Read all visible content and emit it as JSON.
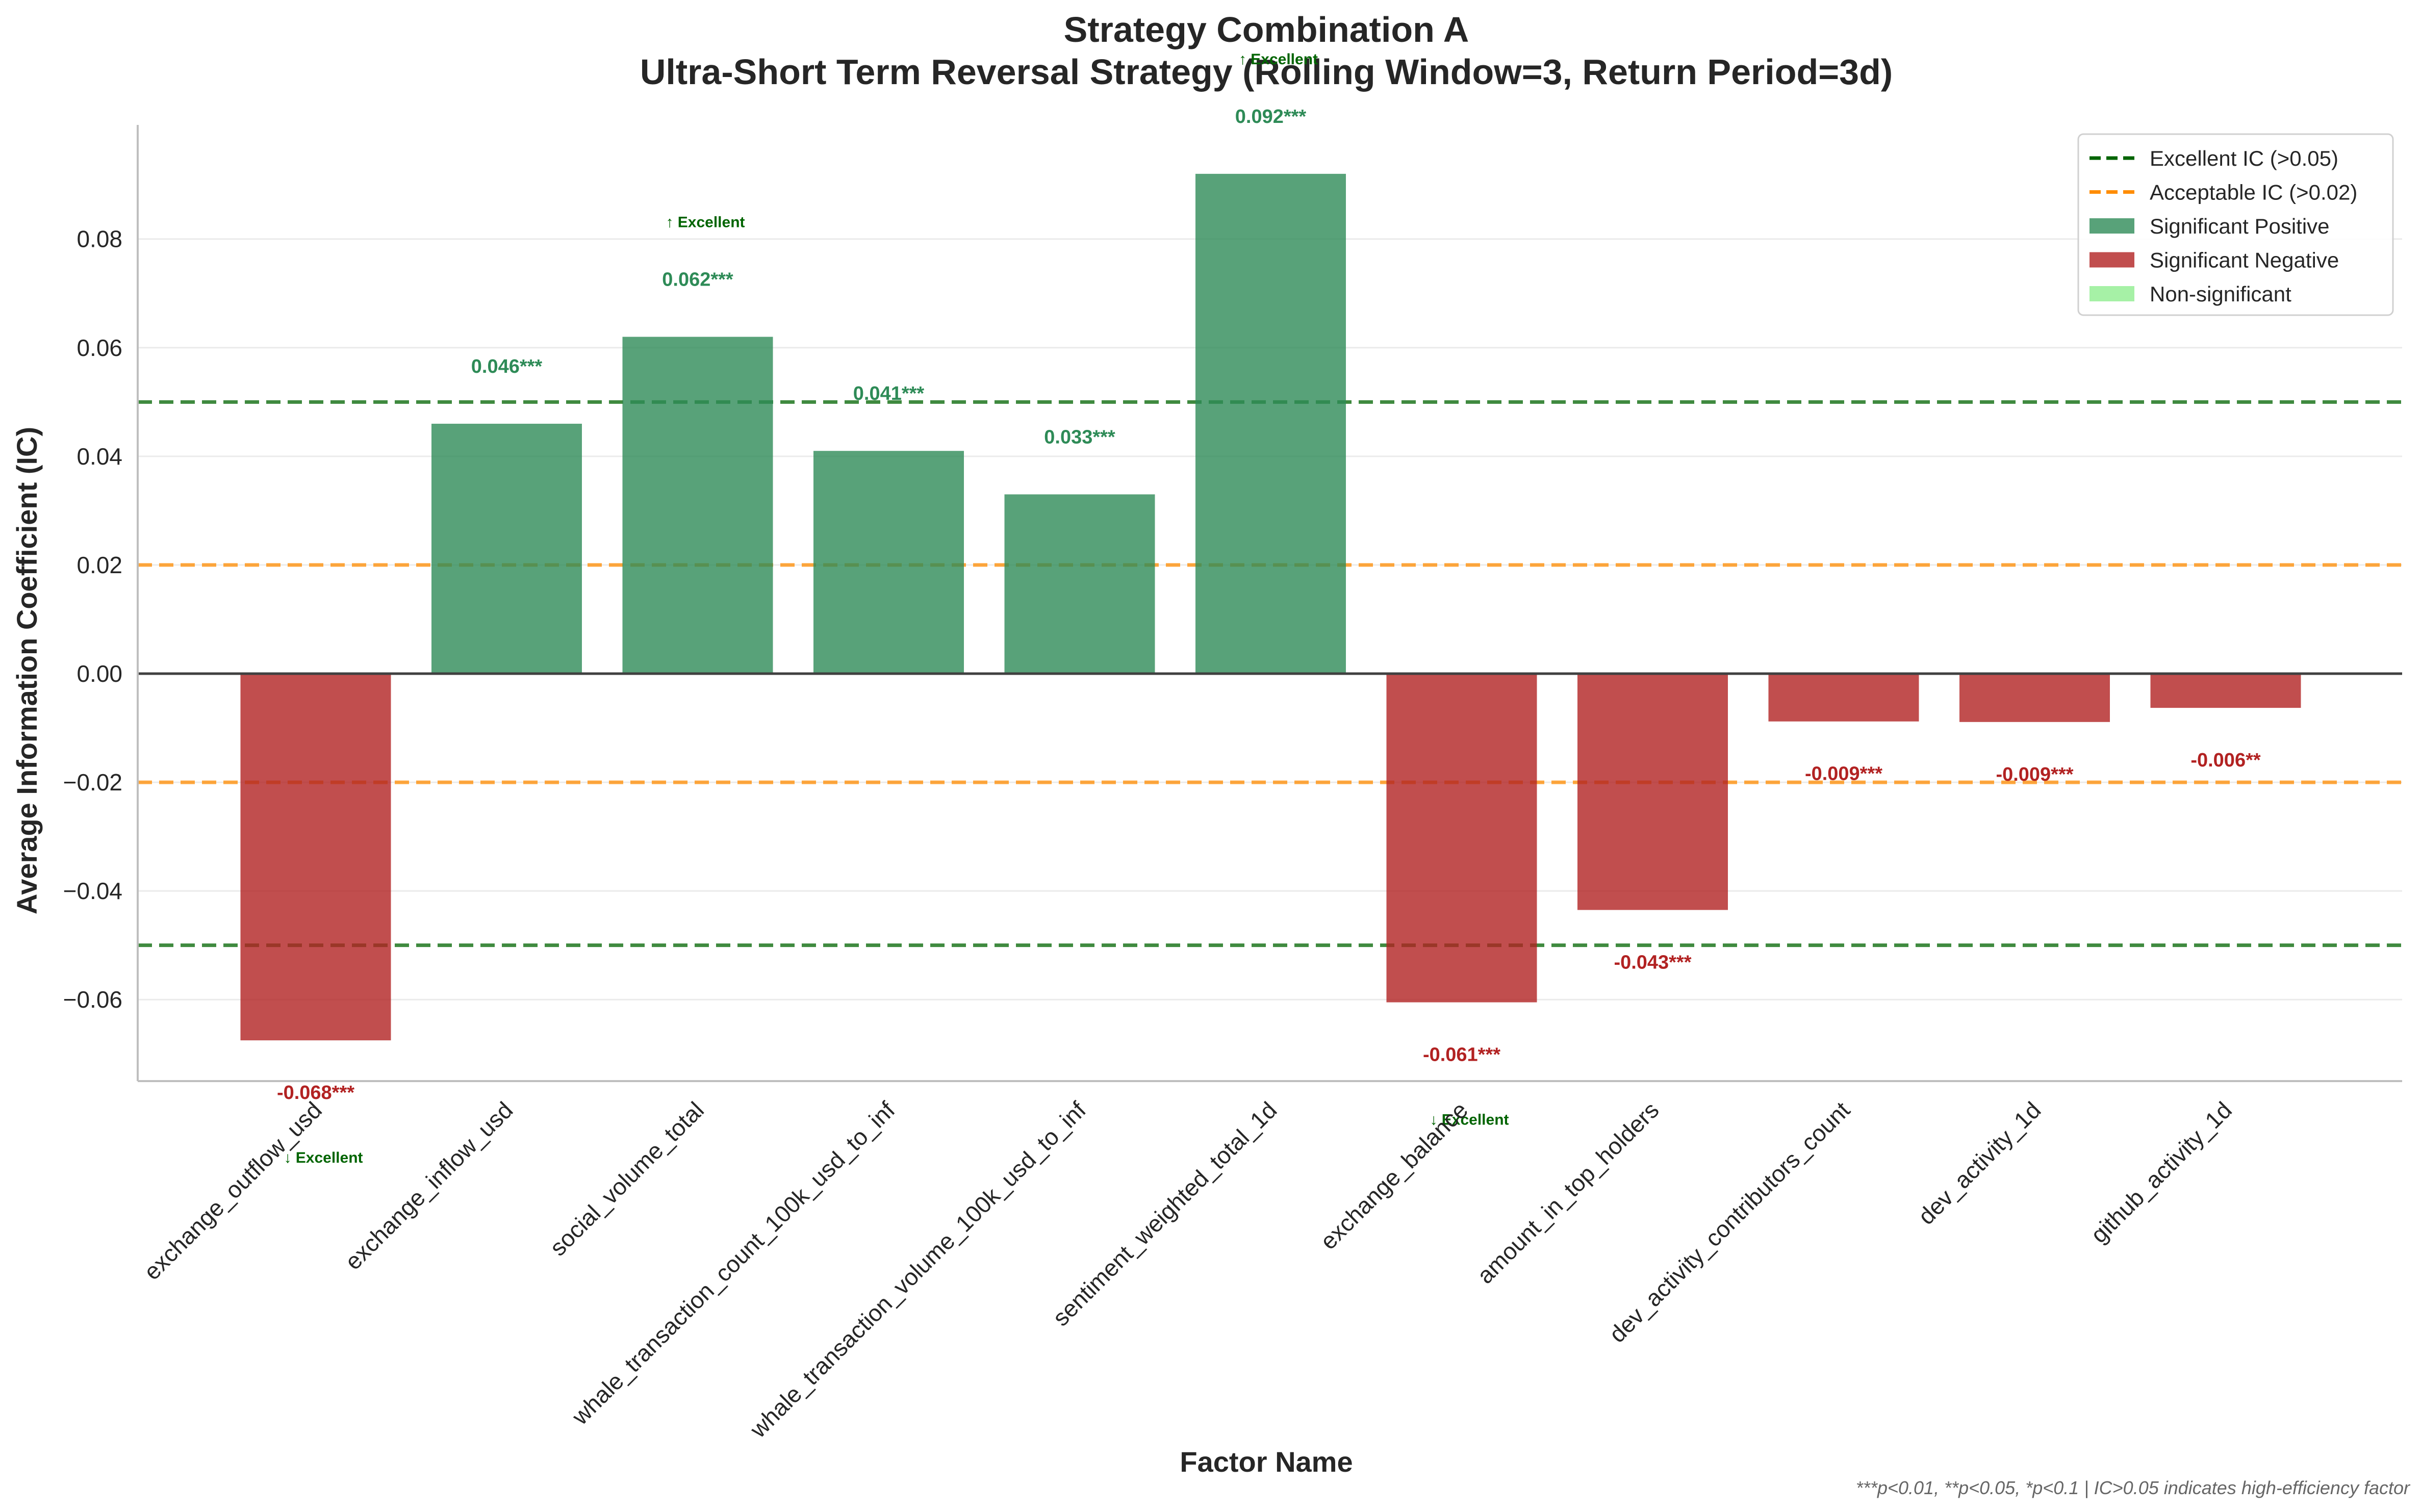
{
  "chart_data": {
    "type": "bar",
    "title": "Strategy Combination A",
    "subtitle": "Ultra-Short Term Reversal Strategy (Rolling Window=3, Return Period=3d)",
    "xlabel": "Factor Name",
    "ylabel": "Average Information Coefficient (IC)",
    "ylim": [
      -0.075,
      0.101
    ],
    "yticks": [
      -0.06,
      -0.04,
      -0.02,
      0.0,
      0.02,
      0.04,
      0.06,
      0.08
    ],
    "ytick_labels": [
      "−0.06",
      "−0.04",
      "−0.02",
      "0.00",
      "0.02",
      "0.04",
      "0.06",
      "0.08"
    ],
    "grid": "horizontal",
    "legend_position": "top-right",
    "categories": [
      "exchange_outflow_usd",
      "exchange_inflow_usd",
      "social_volume_total",
      "whale_transaction_count_100k_usd_to_inf",
      "whale_transaction_volume_100k_usd_to_inf",
      "sentiment_weighted_total_1d",
      "exchange_balance",
      "amount_in_top_holders",
      "dev_activity_contributors_count",
      "dev_activity_1d",
      "github_activity_1d"
    ],
    "values": [
      -0.0675,
      0.046,
      0.062,
      0.041,
      0.033,
      0.092,
      -0.0605,
      -0.0435,
      -0.0088,
      -0.0089,
      -0.0063
    ],
    "value_labels": [
      "-0.068***",
      "0.046***",
      "0.062***",
      "0.041***",
      "0.033***",
      "0.092***",
      "-0.061***",
      "-0.043***",
      "-0.009***",
      "-0.009***",
      "-0.006**"
    ],
    "significance": [
      "negative",
      "positive",
      "positive",
      "positive",
      "positive",
      "positive",
      "negative",
      "negative",
      "negative",
      "negative",
      "negative"
    ],
    "excellent_flags": [
      "↓ Excellent",
      "",
      "↑ Excellent",
      "",
      "",
      "↑ Excellent",
      "↓ Excellent",
      "",
      "",
      "",
      ""
    ],
    "reference_lines": [
      {
        "value": 0.05,
        "color": "#006400",
        "style": "dashed"
      },
      {
        "value": -0.05,
        "color": "#006400",
        "style": "dashed"
      },
      {
        "value": 0.02,
        "color": "#ff8c00",
        "style": "dashed"
      },
      {
        "value": -0.02,
        "color": "#ff8c00",
        "style": "dashed"
      }
    ],
    "legend": [
      {
        "label": "Excellent IC (>0.05)",
        "kind": "line",
        "color": "#006400"
      },
      {
        "label": "Acceptable IC (>0.02)",
        "kind": "line",
        "color": "#ff8c00"
      },
      {
        "label": "Significant Positive",
        "kind": "patch",
        "color": "#2e8b57"
      },
      {
        "label": "Significant Negative",
        "kind": "patch",
        "color": "#b22222"
      },
      {
        "label": "Non-significant",
        "kind": "patch",
        "color": "#90ee90"
      }
    ],
    "colors": {
      "positive": "#2e8b57",
      "negative": "#b22222",
      "positive_text": "#2e8b57",
      "negative_text": "#b22222"
    },
    "footnote": "***p<0.01, **p<0.05, *p<0.1 | IC>0.05 indicates high-efficiency factor"
  }
}
